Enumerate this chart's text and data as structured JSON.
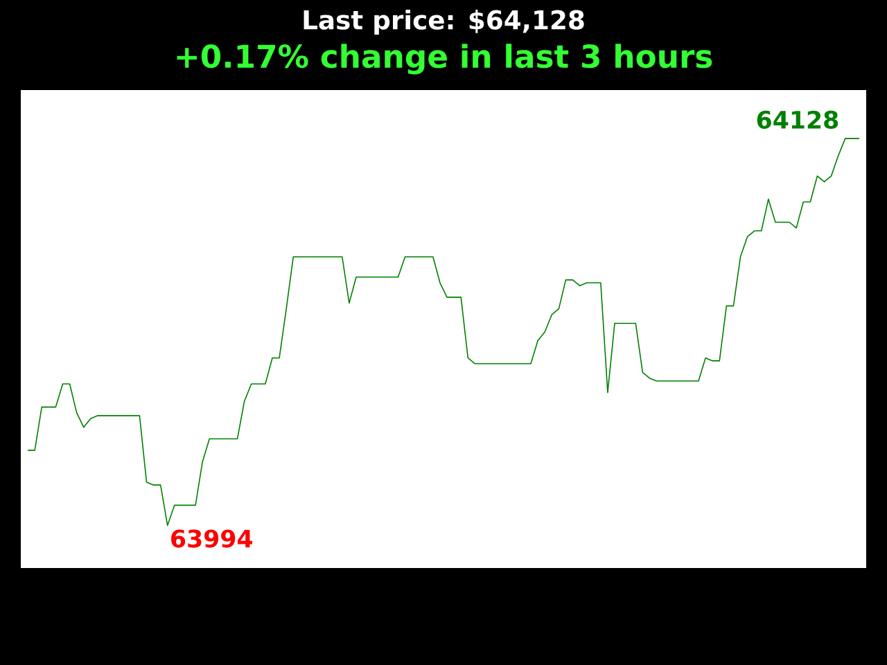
{
  "chart_data": {
    "type": "line",
    "title": "Last price: $64,128",
    "subtitle": "+0.17% change in last 3 hours",
    "categories": [
      null,
      null,
      null,
      null,
      null,
      null,
      null,
      null,
      null,
      null,
      null,
      null,
      null,
      null,
      null,
      null,
      null,
      null,
      null,
      null,
      null,
      null,
      null,
      null,
      null,
      null,
      null,
      null,
      null,
      null,
      null,
      null,
      null,
      null,
      null,
      null,
      null,
      null,
      null,
      null,
      null,
      null,
      null,
      null,
      null,
      null,
      null,
      null,
      null,
      null,
      null,
      null,
      null,
      null,
      null,
      null,
      null,
      null,
      null,
      null,
      null,
      null,
      null,
      null,
      null,
      null,
      null,
      null,
      null,
      null,
      null,
      null,
      null,
      null,
      null,
      null,
      null,
      null,
      null,
      null,
      null,
      null,
      null,
      null,
      null,
      null,
      null,
      null,
      null,
      null,
      null,
      null,
      null,
      null,
      null,
      null,
      null,
      null,
      null,
      null,
      null,
      null,
      null,
      null,
      null,
      null,
      null,
      null,
      null,
      null,
      null,
      null,
      null,
      null,
      null,
      null,
      null,
      null,
      null,
      null
    ],
    "series": [
      {
        "color": "#008000",
        "values": [
          64020,
          64020,
          64035,
          64035,
          64035,
          64043,
          64043,
          64033,
          64028,
          64031,
          64032,
          64032,
          64032,
          64032,
          64032,
          64032,
          64032,
          64009,
          64008,
          64008,
          63994,
          64001,
          64001,
          64001,
          64001,
          64016,
          64024,
          64024,
          64024,
          64024,
          64024,
          64037,
          64043,
          64043,
          64043,
          64052,
          64052,
          64069,
          64087,
          64087,
          64087,
          64087,
          64087,
          64087,
          64087,
          64087,
          64071,
          64080,
          64080,
          64080,
          64080,
          64080,
          64080,
          64080,
          64087,
          64087,
          64087,
          64087,
          64087,
          64078,
          64073,
          64073,
          64073,
          64052,
          64050,
          64050,
          64050,
          64050,
          64050,
          64050,
          64050,
          64050,
          64050,
          64058,
          64061,
          64067,
          64069,
          64079,
          64079,
          64077,
          64078,
          64078,
          64078,
          64040,
          64064,
          64064,
          64064,
          64064,
          64047,
          64045,
          64044,
          64044,
          64044,
          64044,
          64044,
          64044,
          64044,
          64052,
          64051,
          64051,
          64070,
          64070,
          64087,
          64094,
          64096,
          64096,
          64107,
          64099,
          64099,
          64099,
          64097,
          64106,
          64106,
          64115,
          64113,
          64115,
          64122,
          64128,
          64128,
          64128
        ],
        "value_labels": [
          null,
          null,
          null,
          null,
          null,
          null,
          null,
          null,
          null,
          null,
          null,
          null,
          null,
          null,
          null,
          null,
          null,
          null,
          null,
          null,
          "63994",
          null,
          null,
          null,
          null,
          null,
          null,
          null,
          null,
          null,
          null,
          null,
          null,
          null,
          null,
          null,
          null,
          null,
          null,
          null,
          null,
          null,
          null,
          null,
          null,
          null,
          null,
          null,
          null,
          null,
          null,
          null,
          null,
          null,
          null,
          null,
          null,
          null,
          null,
          null,
          null,
          null,
          null,
          null,
          null,
          null,
          null,
          null,
          null,
          null,
          null,
          null,
          null,
          null,
          null,
          null,
          null,
          null,
          null,
          null,
          null,
          null,
          null,
          null,
          null,
          null,
          null,
          null,
          null,
          null,
          null,
          null,
          null,
          null,
          null,
          null,
          null,
          null,
          null,
          null,
          null,
          null,
          null,
          null,
          null,
          null,
          null,
          null,
          null,
          null,
          null,
          null,
          null,
          null,
          null,
          null,
          null,
          "64128",
          null,
          null
        ]
      }
    ],
    "marker": "none",
    "line_style": "solid"
  }
}
